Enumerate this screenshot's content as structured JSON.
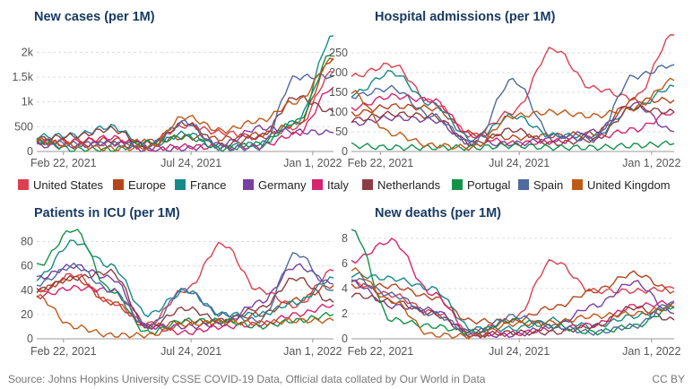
{
  "countries": [
    {
      "name": "United States",
      "color": "#dc3f50"
    },
    {
      "name": "Europe",
      "color": "#b5451b"
    },
    {
      "name": "France",
      "color": "#17898a"
    },
    {
      "name": "Germany",
      "color": "#7b3fa0"
    },
    {
      "name": "Italy",
      "color": "#d6246e"
    },
    {
      "name": "Netherlands",
      "color": "#8c3d43"
    },
    {
      "name": "Portugal",
      "color": "#129347"
    },
    {
      "name": "Spain",
      "color": "#4f6a9e"
    },
    {
      "name": "United Kingdom",
      "color": "#c05917"
    }
  ],
  "x_ticks": [
    "Feb 22, 2021",
    "Jul 24, 2021",
    "Jan 1, 2022"
  ],
  "footer": {
    "source": "Source: Johns Hopkins University CSSE COVID-19 Data, Official data collated by Our World in Data",
    "license": "CC BY"
  },
  "chart_data": [
    {
      "type": "line",
      "title": "New cases (per 1M)",
      "ylim": [
        0,
        2350
      ],
      "yticks": [
        0,
        500,
        1000,
        1500,
        2000
      ],
      "ytick_labels": [
        "0",
        "500",
        "1k",
        "1.5k",
        "2k"
      ],
      "x": [
        0,
        6,
        12,
        18,
        24,
        30,
        36,
        42,
        48
      ],
      "series": [
        {
          "name": "United States",
          "values": [
            190,
            140,
            160,
            200,
            520,
            380,
            280,
            490,
            1600
          ]
        },
        {
          "name": "Europe",
          "values": [
            200,
            220,
            230,
            190,
            290,
            260,
            340,
            540,
            1880
          ]
        },
        {
          "name": "France",
          "values": [
            300,
            330,
            500,
            100,
            360,
            100,
            150,
            600,
            2330
          ]
        },
        {
          "name": "Germany",
          "values": [
            120,
            110,
            180,
            30,
            60,
            150,
            480,
            400,
            380
          ]
        },
        {
          "name": "Italy",
          "values": [
            190,
            200,
            280,
            60,
            100,
            80,
            100,
            350,
            1300
          ]
        },
        {
          "name": "Netherlands",
          "values": [
            250,
            310,
            450,
            100,
            570,
            120,
            300,
            1100,
            800
          ]
        },
        {
          "name": "Portugal",
          "values": [
            210,
            40,
            40,
            180,
            300,
            60,
            150,
            600,
            2000
          ]
        },
        {
          "name": "Spain",
          "values": [
            210,
            150,
            150,
            120,
            590,
            60,
            80,
            1500,
            1520
          ]
        },
        {
          "name": "United Kingdom",
          "values": [
            230,
            120,
            60,
            80,
            700,
            420,
            620,
            1000,
            1850
          ]
        }
      ]
    },
    {
      "type": "line",
      "title": "Hospital admissions (per 1M)",
      "ylim": [
        0,
        295
      ],
      "yticks": [
        0,
        50,
        100,
        150,
        200,
        250
      ],
      "ytick_labels": [
        "0",
        "50",
        "100",
        "150",
        "200",
        "250"
      ],
      "x": [
        0,
        6,
        12,
        18,
        24,
        30,
        36,
        42,
        48
      ],
      "series": [
        {
          "name": "United States",
          "values": [
            190,
            220,
            125,
            40,
            100,
            260,
            160,
            135,
            295
          ]
        },
        {
          "name": "Europe",
          "values": [
            95,
            115,
            110,
            45,
            35,
            40,
            45,
            130,
            130
          ]
        },
        {
          "name": "France",
          "values": [
            145,
            200,
            120,
            30,
            90,
            40,
            40,
            110,
            165
          ]
        },
        {
          "name": "Germany",
          "values": [
            70,
            85,
            80,
            20,
            20,
            30,
            50,
            120,
            50
          ]
        },
        {
          "name": "Italy",
          "values": [
            110,
            140,
            130,
            40,
            20,
            25,
            35,
            55,
            100
          ]
        },
        {
          "name": "Netherlands",
          "values": [
            80,
            95,
            90,
            20,
            55,
            20,
            30,
            110,
            100
          ]
        },
        {
          "name": "Portugal",
          "values": [
            15,
            10,
            10,
            10,
            15,
            10,
            10,
            15,
            20
          ]
        },
        {
          "name": "Spain",
          "values": [
            140,
            160,
            90,
            20,
            180,
            40,
            30,
            190,
            220
          ]
        },
        {
          "name": "United Kingdom",
          "values": [
            150,
            45,
            15,
            10,
            90,
            100,
            90,
            110,
            180
          ]
        }
      ]
    },
    {
      "type": "line",
      "title": "Patients in ICU (per 1M)",
      "ylim": [
        0,
        90
      ],
      "yticks": [
        0,
        20,
        40,
        60,
        80
      ],
      "ytick_labels": [
        "0",
        "20",
        "40",
        "60",
        "80"
      ],
      "x": [
        0,
        6,
        12,
        18,
        24,
        30,
        36,
        42,
        48
      ],
      "series": [
        {
          "name": "United States",
          "values": [
            38,
            53,
            30,
            12,
            40,
            78,
            40,
            27,
            56
          ]
        },
        {
          "name": "Europe",
          "values": [
            40,
            50,
            30,
            10,
            14,
            14,
            20,
            32,
            44
          ]
        },
        {
          "name": "France",
          "values": [
            50,
            80,
            60,
            20,
            40,
            20,
            20,
            30,
            50
          ]
        },
        {
          "name": "Germany",
          "values": [
            50,
            60,
            50,
            10,
            10,
            12,
            30,
            60,
            45
          ]
        },
        {
          "name": "Italy",
          "values": [
            35,
            42,
            40,
            10,
            5,
            10,
            12,
            20,
            28
          ]
        },
        {
          "name": "Netherlands",
          "values": [
            40,
            50,
            55,
            10,
            25,
            15,
            25,
            50,
            30
          ]
        },
        {
          "name": "Portugal",
          "values": [
            60,
            90,
            40,
            5,
            15,
            15,
            10,
            15,
            20
          ]
        },
        {
          "name": "Spain",
          "values": [
            45,
            60,
            40,
            10,
            40,
            20,
            15,
            70,
            40
          ]
        },
        {
          "name": "United Kingdom",
          "values": [
            35,
            10,
            3,
            3,
            12,
            14,
            13,
            15,
            15
          ]
        }
      ]
    },
    {
      "type": "line",
      "title": "New deaths (per 1M)",
      "ylim": [
        0,
        8.7
      ],
      "yticks": [
        0,
        2,
        4,
        6,
        8
      ],
      "ytick_labels": [
        "0",
        "2",
        "4",
        "6",
        "8"
      ],
      "x": [
        0,
        6,
        12,
        18,
        24,
        30,
        36,
        42,
        48
      ],
      "series": [
        {
          "name": "United States",
          "values": [
            4.5,
            3.5,
            2.1,
            0.6,
            1.5,
            6.2,
            3.8,
            3.8,
            4.0
          ]
        },
        {
          "name": "Europe",
          "values": [
            4.2,
            4.2,
            3.3,
            1.4,
            1.4,
            2.5,
            3.8,
            5.2,
            3.8
          ]
        },
        {
          "name": "France",
          "values": [
            5.1,
            4.8,
            4.0,
            0.8,
            0.8,
            1.5,
            1.0,
            1.8,
            2.5
          ]
        },
        {
          "name": "Germany",
          "values": [
            4.5,
            2.6,
            2.3,
            0.3,
            0.3,
            1.0,
            2.6,
            4.5,
            2.0
          ]
        },
        {
          "name": "Italy",
          "values": [
            6.2,
            7.8,
            3.6,
            0.4,
            0.4,
            0.8,
            1.1,
            2.6,
            2.9
          ]
        },
        {
          "name": "Netherlands",
          "values": [
            3.5,
            3.0,
            2.0,
            0.3,
            0.5,
            0.5,
            1.0,
            2.5,
            1.5
          ]
        },
        {
          "name": "Portugal",
          "values": [
            8.7,
            1.5,
            1.0,
            0.5,
            1.5,
            1.0,
            0.5,
            1.0,
            2.5
          ]
        },
        {
          "name": "Spain",
          "values": [
            4.8,
            3.5,
            2.0,
            0.5,
            1.8,
            1.0,
            0.5,
            1.0,
            3.0
          ]
        },
        {
          "name": "United Kingdom",
          "values": [
            5.5,
            3.0,
            0.3,
            0.2,
            1.2,
            1.3,
            1.8,
            2.0,
            2.5
          ]
        }
      ]
    }
  ]
}
